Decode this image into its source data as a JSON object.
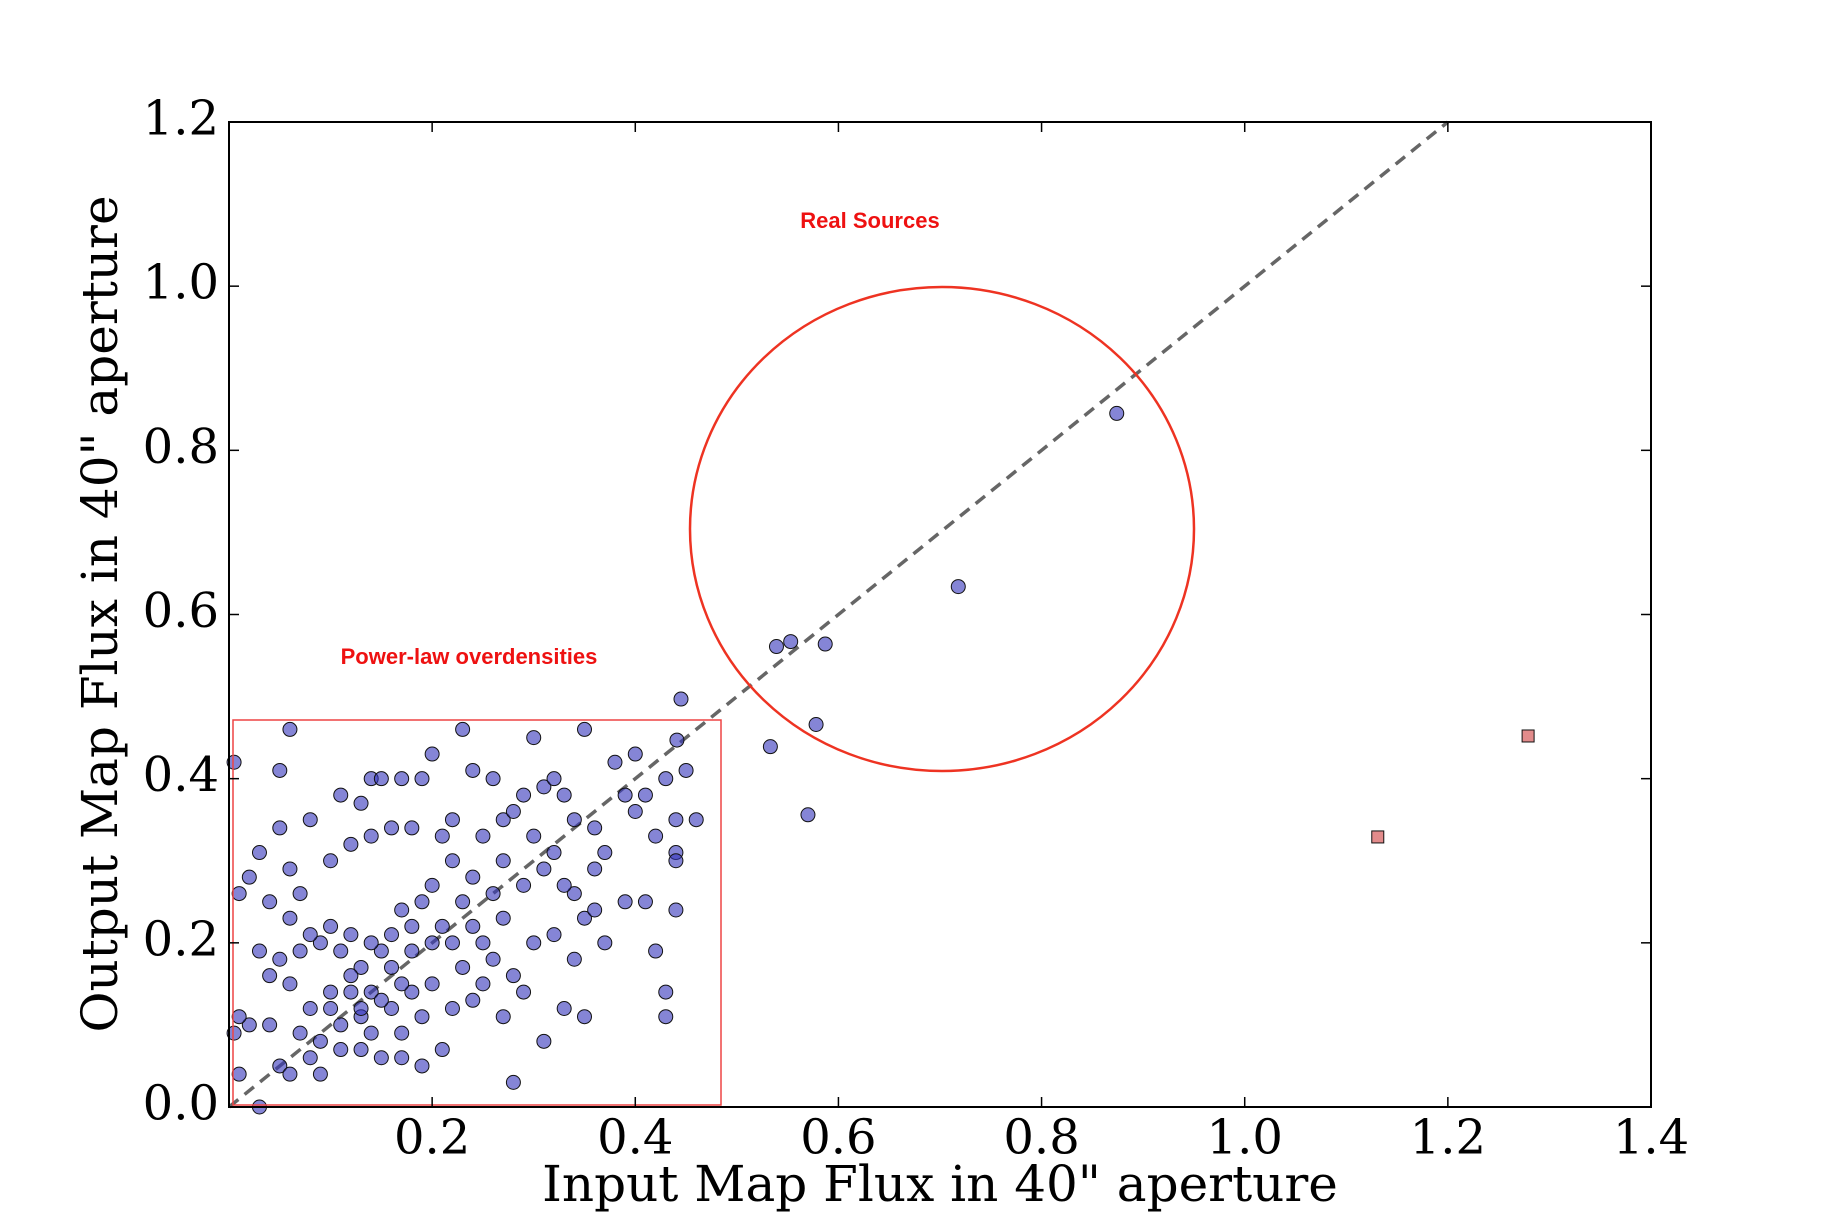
{
  "chart_data": {
    "type": "scatter",
    "xlabel": "Input Map Flux in 40\" aperture",
    "ylabel": "Output Map  Flux in 40\" aperture",
    "annotations": [
      "Real Sources",
      "Power-law overdensities"
    ],
    "xlim": [
      0,
      1.4
    ],
    "ylim": [
      0,
      1.2
    ],
    "xticks": [
      0.2,
      0.4,
      0.6,
      0.8,
      {
        "value": 1,
        "label": "1.0"
      },
      1.2,
      1.4
    ],
    "yticks": [
      {
        "value": 0,
        "label": "0.0"
      },
      0.2,
      0.4,
      0.6,
      0.8,
      {
        "value": 1,
        "label": "1.0"
      },
      1.2
    ],
    "identity_line": true,
    "series": [
      {
        "marker": "circle",
        "color": "#3333bb",
        "x": [
          0.005,
          0.06,
          0.05,
          0.23,
          0.3,
          0.35,
          0.2,
          0.14,
          0.15,
          0.17,
          0.19,
          0.24,
          0.26,
          0.11,
          0.13,
          0.08,
          0.05,
          0.03,
          0.06,
          0.02,
          0.01,
          0.04,
          0.07,
          0.1,
          0.12,
          0.14,
          0.16,
          0.18,
          0.21,
          0.22,
          0.25,
          0.27,
          0.28,
          0.29,
          0.31,
          0.32,
          0.33,
          0.3,
          0.32,
          0.34,
          0.36,
          0.38,
          0.39,
          0.4,
          0.41,
          0.43,
          0.44,
          0.45,
          0.46,
          0.42,
          0.44,
          0.44,
          0.4,
          0.37,
          0.36,
          0.35,
          0.34,
          0.33,
          0.31,
          0.29,
          0.27,
          0.26,
          0.24,
          0.23,
          0.22,
          0.2,
          0.19,
          0.18,
          0.17,
          0.16,
          0.15,
          0.14,
          0.13,
          0.12,
          0.11,
          0.1,
          0.09,
          0.08,
          0.07,
          0.06,
          0.05,
          0.04,
          0.03,
          0.02,
          0.01,
          0.005,
          0.01,
          0.05,
          0.06,
          0.04,
          0.07,
          0.08,
          0.09,
          0.1,
          0.11,
          0.12,
          0.13,
          0.14,
          0.15,
          0.16,
          0.17,
          0.18,
          0.19,
          0.2,
          0.21,
          0.22,
          0.23,
          0.24,
          0.25,
          0.26,
          0.27,
          0.28,
          0.29,
          0.3,
          0.31,
          0.32,
          0.33,
          0.34,
          0.35,
          0.36,
          0.37,
          0.39,
          0.41,
          0.42,
          0.43,
          0.43,
          0.44,
          0.28,
          0.19,
          0.17,
          0.13,
          0.09,
          0.2,
          0.21,
          0.22,
          0.24,
          0.25,
          0.27,
          0.18,
          0.16,
          0.14,
          0.12,
          0.1,
          0.15,
          0.17,
          0.13,
          0.11,
          0.08,
          0.06,
          0.03,
          0.874,
          0.718,
          0.539,
          0.553,
          0.587,
          0.578,
          0.533,
          0.57,
          0.445,
          0.441
        ],
        "values": [
          0.42,
          0.46,
          0.41,
          0.46,
          0.45,
          0.46,
          0.43,
          0.4,
          0.4,
          0.4,
          0.4,
          0.41,
          0.4,
          0.38,
          0.37,
          0.35,
          0.34,
          0.31,
          0.29,
          0.28,
          0.26,
          0.25,
          0.26,
          0.3,
          0.32,
          0.33,
          0.34,
          0.34,
          0.33,
          0.35,
          0.33,
          0.35,
          0.36,
          0.38,
          0.39,
          0.4,
          0.38,
          0.33,
          0.31,
          0.35,
          0.34,
          0.42,
          0.38,
          0.43,
          0.38,
          0.4,
          0.35,
          0.41,
          0.35,
          0.33,
          0.31,
          0.3,
          0.36,
          0.31,
          0.29,
          0.23,
          0.26,
          0.27,
          0.29,
          0.27,
          0.3,
          0.26,
          0.28,
          0.25,
          0.3,
          0.27,
          0.25,
          0.22,
          0.24,
          0.21,
          0.19,
          0.2,
          0.17,
          0.21,
          0.19,
          0.22,
          0.2,
          0.21,
          0.19,
          0.23,
          0.18,
          0.16,
          0.19,
          0.1,
          0.11,
          0.09,
          0.04,
          0.05,
          0.04,
          0.1,
          0.09,
          0.06,
          0.08,
          0.12,
          0.1,
          0.14,
          0.11,
          0.09,
          0.06,
          0.12,
          0.09,
          0.14,
          0.11,
          0.15,
          0.07,
          0.12,
          0.17,
          0.13,
          0.15,
          0.18,
          0.11,
          0.16,
          0.14,
          0.2,
          0.08,
          0.21,
          0.12,
          0.18,
          0.11,
          0.24,
          0.2,
          0.25,
          0.25,
          0.19,
          0.14,
          0.11,
          0.24,
          0.03,
          0.05,
          0.06,
          0.07,
          0.04,
          0.2,
          0.22,
          0.2,
          0.22,
          0.2,
          0.23,
          0.19,
          0.17,
          0.14,
          0.16,
          0.14,
          0.13,
          0.15,
          0.12,
          0.07,
          0.12,
          0.15,
          0.0,
          0.845,
          0.634,
          0.561,
          0.567,
          0.564,
          0.466,
          0.439,
          0.356,
          0.497,
          0.447
        ]
      },
      {
        "marker": "square",
        "color": "#dd7777",
        "x": [
          1.131,
          1.279
        ],
        "values": [
          0.329,
          0.452
        ]
      }
    ]
  }
}
